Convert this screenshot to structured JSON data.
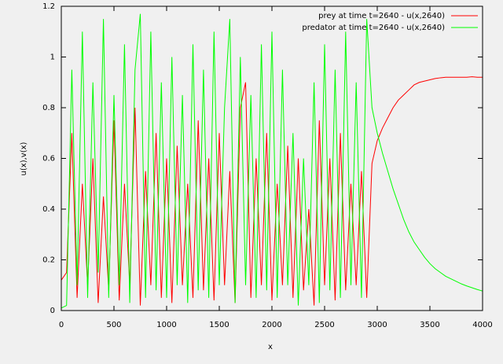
{
  "chart_data": {
    "type": "line",
    "xlabel": "x",
    "ylabel": "u(x),v(x)",
    "x": [
      0,
      50,
      100,
      150,
      200,
      250,
      300,
      350,
      400,
      450,
      500,
      550,
      600,
      650,
      700,
      750,
      800,
      850,
      900,
      950,
      1000,
      1050,
      1100,
      1150,
      1200,
      1250,
      1300,
      1350,
      1400,
      1450,
      1500,
      1550,
      1600,
      1650,
      1700,
      1750,
      1800,
      1850,
      1900,
      1950,
      2000,
      2050,
      2100,
      2150,
      2200,
      2250,
      2300,
      2350,
      2400,
      2450,
      2500,
      2550,
      2600,
      2650,
      2700,
      2750,
      2800,
      2850,
      2900,
      2950,
      3000,
      3050,
      3100,
      3150,
      3200,
      3250,
      3300,
      3350,
      3400,
      3450,
      3500,
      3550,
      3600,
      3650,
      3700,
      3750,
      3800,
      3850,
      3900,
      3950,
      4000
    ],
    "series": [
      {
        "name": "prey at time t=2640 - u(x,2640)",
        "color": "#ff0000",
        "values": [
          0.12,
          0.15,
          0.7,
          0.05,
          0.5,
          0.1,
          0.6,
          0.03,
          0.45,
          0.08,
          0.75,
          0.04,
          0.5,
          0.1,
          0.8,
          0.02,
          0.55,
          0.1,
          0.7,
          0.05,
          0.6,
          0.03,
          0.65,
          0.1,
          0.5,
          0.05,
          0.75,
          0.08,
          0.6,
          0.04,
          0.7,
          0.1,
          0.55,
          0.03,
          0.8,
          0.9,
          0.05,
          0.6,
          0.1,
          0.7,
          0.04,
          0.5,
          0.1,
          0.65,
          0.05,
          0.6,
          0.08,
          0.4,
          0.02,
          0.75,
          0.1,
          0.6,
          0.04,
          0.7,
          0.08,
          0.5,
          0.1,
          0.55,
          0.05,
          0.58,
          0.67,
          0.72,
          0.76,
          0.8,
          0.83,
          0.85,
          0.87,
          0.89,
          0.9,
          0.905,
          0.91,
          0.915,
          0.918,
          0.92,
          0.92,
          0.92,
          0.92,
          0.92,
          0.922,
          0.92,
          0.92
        ]
      },
      {
        "name": "predator at time t=2640 - u(x,2640)",
        "color": "#00ff00",
        "values": [
          0.01,
          0.02,
          0.95,
          0.1,
          1.1,
          0.05,
          0.9,
          0.15,
          1.15,
          0.05,
          0.85,
          0.1,
          1.05,
          0.03,
          0.95,
          1.17,
          0.05,
          1.1,
          0.08,
          0.9,
          0.05,
          1.0,
          0.1,
          0.85,
          0.03,
          1.05,
          0.08,
          0.95,
          0.05,
          1.1,
          0.1,
          0.8,
          1.15,
          0.03,
          1.0,
          0.1,
          0.85,
          0.05,
          1.05,
          0.08,
          1.1,
          0.05,
          0.95,
          0.1,
          0.7,
          0.02,
          0.6,
          0.1,
          0.9,
          0.03,
          1.05,
          0.08,
          0.95,
          0.05,
          1.1,
          0.1,
          0.9,
          0.05,
          1.15,
          0.8,
          0.7,
          0.62,
          0.55,
          0.48,
          0.42,
          0.36,
          0.31,
          0.27,
          0.24,
          0.21,
          0.185,
          0.165,
          0.15,
          0.135,
          0.125,
          0.115,
          0.105,
          0.097,
          0.09,
          0.083,
          0.077
        ]
      }
    ],
    "xlim": [
      0,
      4000
    ],
    "xticks": [
      0,
      500,
      1000,
      1500,
      2000,
      2500,
      3000,
      3500,
      4000
    ],
    "ylim": [
      0,
      1.2
    ],
    "yticks": [
      0,
      0.2,
      0.4,
      0.6,
      0.8,
      1,
      1.2
    ],
    "legend": "top right"
  }
}
